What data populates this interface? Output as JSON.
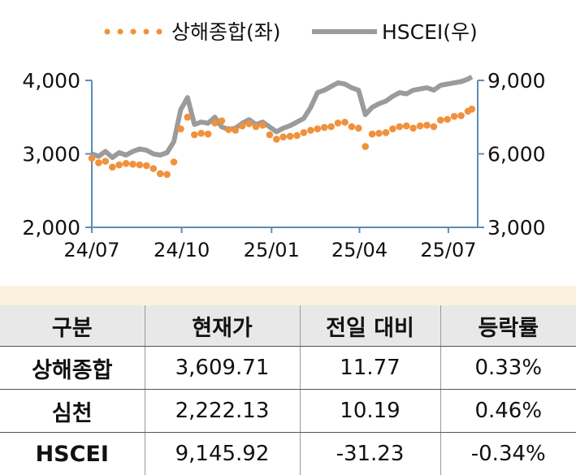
{
  "chart_data": {
    "type": "line",
    "legend_position": "top",
    "series": [
      {
        "name": "상해종합(좌)",
        "axis": "left",
        "style": "dotted",
        "color": "#f0913c",
        "points": [
          [
            "2024-07-01",
            2940
          ],
          [
            "2024-07-08",
            2880
          ],
          [
            "2024-07-15",
            2900
          ],
          [
            "2024-07-22",
            2820
          ],
          [
            "2024-07-29",
            2850
          ],
          [
            "2024-08-05",
            2870
          ],
          [
            "2024-08-12",
            2860
          ],
          [
            "2024-08-19",
            2850
          ],
          [
            "2024-08-26",
            2840
          ],
          [
            "2024-09-02",
            2800
          ],
          [
            "2024-09-09",
            2730
          ],
          [
            "2024-09-16",
            2720
          ],
          [
            "2024-09-23",
            2890
          ],
          [
            "2024-09-30",
            3340
          ],
          [
            "2024-10-07",
            3500
          ],
          [
            "2024-10-14",
            3260
          ],
          [
            "2024-10-21",
            3280
          ],
          [
            "2024-10-28",
            3270
          ],
          [
            "2024-11-04",
            3420
          ],
          [
            "2024-11-11",
            3450
          ],
          [
            "2024-11-18",
            3330
          ],
          [
            "2024-11-25",
            3320
          ],
          [
            "2024-12-02",
            3380
          ],
          [
            "2024-12-09",
            3410
          ],
          [
            "2024-12-16",
            3370
          ],
          [
            "2024-12-23",
            3390
          ],
          [
            "2024-12-30",
            3260
          ],
          [
            "2025-01-06",
            3200
          ],
          [
            "2025-01-13",
            3230
          ],
          [
            "2025-01-20",
            3240
          ],
          [
            "2025-01-27",
            3250
          ],
          [
            "2025-02-03",
            3290
          ],
          [
            "2025-02-10",
            3320
          ],
          [
            "2025-02-17",
            3340
          ],
          [
            "2025-02-24",
            3360
          ],
          [
            "2025-03-03",
            3370
          ],
          [
            "2025-03-10",
            3420
          ],
          [
            "2025-03-17",
            3430
          ],
          [
            "2025-03-24",
            3370
          ],
          [
            "2025-03-31",
            3350
          ],
          [
            "2025-04-07",
            3100
          ],
          [
            "2025-04-14",
            3270
          ],
          [
            "2025-04-21",
            3280
          ],
          [
            "2025-04-28",
            3290
          ],
          [
            "2025-05-05",
            3340
          ],
          [
            "2025-05-12",
            3370
          ],
          [
            "2025-05-19",
            3380
          ],
          [
            "2025-05-26",
            3350
          ],
          [
            "2025-06-02",
            3380
          ],
          [
            "2025-06-09",
            3390
          ],
          [
            "2025-06-16",
            3370
          ],
          [
            "2025-06-23",
            3460
          ],
          [
            "2025-06-30",
            3470
          ],
          [
            "2025-07-07",
            3510
          ],
          [
            "2025-07-14",
            3520
          ],
          [
            "2025-07-21",
            3580
          ],
          [
            "2025-07-25",
            3609.71
          ]
        ]
      },
      {
        "name": "HSCEI(우)",
        "axis": "right",
        "style": "solid",
        "color": "#9b9b9b",
        "points": [
          [
            "2024-07-01",
            6000
          ],
          [
            "2024-07-08",
            5900
          ],
          [
            "2024-07-15",
            6100
          ],
          [
            "2024-07-22",
            5850
          ],
          [
            "2024-07-29",
            6050
          ],
          [
            "2024-08-05",
            5950
          ],
          [
            "2024-08-12",
            6100
          ],
          [
            "2024-08-19",
            6200
          ],
          [
            "2024-08-26",
            6150
          ],
          [
            "2024-09-02",
            6000
          ],
          [
            "2024-09-09",
            5950
          ],
          [
            "2024-09-16",
            6050
          ],
          [
            "2024-09-23",
            6500
          ],
          [
            "2024-09-30",
            7800
          ],
          [
            "2024-10-07",
            8300
          ],
          [
            "2024-10-14",
            7200
          ],
          [
            "2024-10-21",
            7300
          ],
          [
            "2024-10-28",
            7250
          ],
          [
            "2024-11-04",
            7500
          ],
          [
            "2024-11-11",
            7100
          ],
          [
            "2024-11-18",
            7000
          ],
          [
            "2024-11-25",
            7050
          ],
          [
            "2024-12-02",
            7250
          ],
          [
            "2024-12-09",
            7400
          ],
          [
            "2024-12-16",
            7200
          ],
          [
            "2024-12-23",
            7300
          ],
          [
            "2024-12-30",
            7100
          ],
          [
            "2025-01-06",
            6900
          ],
          [
            "2025-01-13",
            7050
          ],
          [
            "2025-01-20",
            7150
          ],
          [
            "2025-01-27",
            7300
          ],
          [
            "2025-02-03",
            7450
          ],
          [
            "2025-02-10",
            7900
          ],
          [
            "2025-02-17",
            8500
          ],
          [
            "2025-02-24",
            8600
          ],
          [
            "2025-03-03",
            8750
          ],
          [
            "2025-03-10",
            8900
          ],
          [
            "2025-03-17",
            8850
          ],
          [
            "2025-03-24",
            8700
          ],
          [
            "2025-03-31",
            8600
          ],
          [
            "2025-04-07",
            7600
          ],
          [
            "2025-04-14",
            7900
          ],
          [
            "2025-04-21",
            8050
          ],
          [
            "2025-04-28",
            8150
          ],
          [
            "2025-05-05",
            8350
          ],
          [
            "2025-05-12",
            8500
          ],
          [
            "2025-05-19",
            8450
          ],
          [
            "2025-05-26",
            8600
          ],
          [
            "2025-06-02",
            8650
          ],
          [
            "2025-06-09",
            8700
          ],
          [
            "2025-06-16",
            8600
          ],
          [
            "2025-06-23",
            8800
          ],
          [
            "2025-06-30",
            8850
          ],
          [
            "2025-07-07",
            8900
          ],
          [
            "2025-07-14",
            8950
          ],
          [
            "2025-07-21",
            9050
          ],
          [
            "2025-07-25",
            9145.92
          ]
        ]
      }
    ],
    "x_axis": {
      "range": [
        "2024-07-01",
        "2025-07-31"
      ],
      "ticks": [
        [
          "2024-07-01",
          "24/07"
        ],
        [
          "2024-10-01",
          "24/10"
        ],
        [
          "2025-01-01",
          "25/01"
        ],
        [
          "2025-04-01",
          "25/04"
        ],
        [
          "2025-07-01",
          "25/07"
        ]
      ]
    },
    "y_left": {
      "range": [
        2000,
        4000
      ],
      "ticks": [
        2000,
        3000,
        4000
      ],
      "tick_labels": [
        "2,000",
        "3,000",
        "4,000"
      ]
    },
    "y_right": {
      "range": [
        3000,
        9000
      ],
      "ticks": [
        3000,
        6000,
        9000
      ],
      "tick_labels": [
        "3,000",
        "6,000",
        "9,000"
      ]
    },
    "grid": false
  },
  "table": {
    "headers": [
      "구분",
      "현재가",
      "전일 대비",
      "등락률"
    ],
    "rows": [
      {
        "name": "상해종합",
        "price": "3,609.71",
        "change": "11.77",
        "rate": "0.33%"
      },
      {
        "name": "심천",
        "price": "2,222.13",
        "change": "10.19",
        "rate": "0.46%"
      },
      {
        "name": "HSCEI",
        "price": "9,145.92",
        "change": "-31.23",
        "rate": "-0.34%"
      }
    ]
  }
}
